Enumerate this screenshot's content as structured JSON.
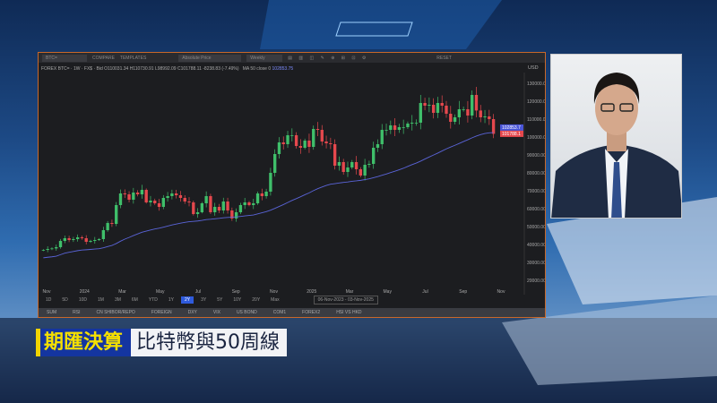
{
  "toolbar": {
    "symbol": "BTC=",
    "compare": "COMPARE",
    "templates": "TEMPLATES",
    "price_type": "Absolute Price",
    "interval": "Weekly",
    "reset": "RESET"
  },
  "info": {
    "line": "FOREX BTC= · 1W · FX$ · Bid  O110031.34  H110730.91  L98992.09  C101788.11  -8238.83 (-7.49%)",
    "ma_label": "MA 50 close 0",
    "ma_value": "102853.75"
  },
  "range_buttons": [
    "1D",
    "5D",
    "10D",
    "1M",
    "3M",
    "6M",
    "YTD",
    "1Y",
    "2Y",
    "3Y",
    "5Y",
    "10Y",
    "20Y",
    "Max"
  ],
  "active_range": "2Y",
  "date_range": "06-Nov-2023  -  03-Nov-2025",
  "watchlist_tabs": [
    "SUM",
    "RSI",
    "CN SHIBOR/REPO",
    "FOREIGN",
    "DXY",
    "VIX",
    "US BOND",
    "COM1",
    "FOREX2",
    "HSI VS HKD"
  ],
  "caption": {
    "tag": "期匯決算",
    "title": "比特幣與50周線"
  },
  "colors": {
    "up": "#3fbf6a",
    "down": "#e5484d",
    "ma": "#5a64d8",
    "active": "#2f5bdc",
    "frame": "#c8682a"
  },
  "chart_data": {
    "type": "candlestick",
    "currency": "USD",
    "interval": "weekly",
    "x_start": "06-Nov-2023",
    "x_end": "03-Nov-2025",
    "x_tick_labels": [
      "Nov",
      "2024",
      "Mar",
      "May",
      "Jul",
      "Sep",
      "Nov",
      "2025",
      "Mar",
      "May",
      "Jul",
      "Sep",
      "Nov"
    ],
    "y_tick_labels": [
      "130000.00",
      "120000.00",
      "110000.00",
      "100000.00",
      "90000.00",
      "80000.00",
      "70000.00",
      "60000.00",
      "50000.00",
      "40000.00",
      "30000.00",
      "20000.00"
    ],
    "ylim": [
      20000,
      130000
    ],
    "last_close": "101788.1",
    "ma_last": "102853.7",
    "weekly_close": [
      37000,
      37500,
      37800,
      38500,
      42000,
      43500,
      42500,
      43000,
      44000,
      43500,
      41500,
      42000,
      42500,
      43000,
      48000,
      52000,
      51500,
      62000,
      68500,
      68000,
      65000,
      69000,
      68000,
      70500,
      63500,
      64500,
      63000,
      61000,
      66000,
      67000,
      68500,
      67500,
      66000,
      64000,
      63500,
      57000,
      58000,
      63000,
      67000,
      58000,
      61000,
      59000,
      64000,
      59000,
      54500,
      58000,
      62000,
      63500,
      62000,
      63000,
      68500,
      67000,
      69500,
      80000,
      90500,
      97000,
      96000,
      101000,
      101000,
      95000,
      94000,
      98000,
      94500,
      104500,
      104000,
      97500,
      96500,
      96000,
      84000,
      86000,
      80500,
      83000,
      86000,
      82000,
      78500,
      84500,
      85000,
      94000,
      96000,
      104000,
      104000,
      106500,
      104000,
      105500,
      105500,
      107500,
      108000,
      108000,
      119000,
      117500,
      118000,
      113500,
      119000,
      117500,
      113000,
      108500,
      111000,
      115500,
      115500,
      112000,
      123500,
      114800,
      111000,
      111500,
      110000,
      101788
    ],
    "indicator": "MA 50 close"
  }
}
